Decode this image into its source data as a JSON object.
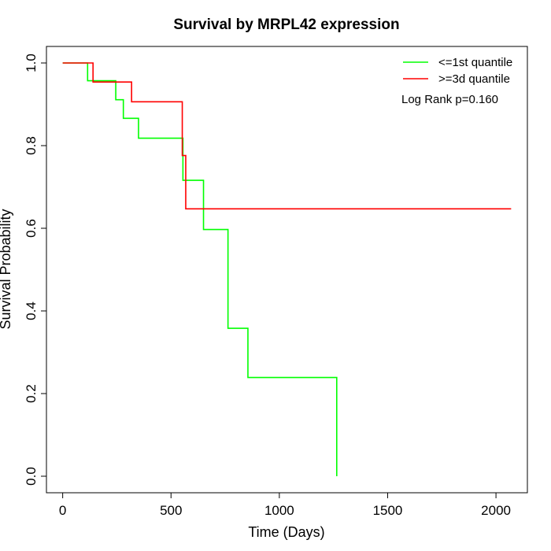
{
  "chart_data": {
    "type": "line",
    "title": "Survival by MRPL42 expression",
    "xlabel": "Time (Days)",
    "ylabel": "Survival Probability",
    "xlim": [
      -75,
      2145
    ],
    "ylim": [
      -0.04,
      1.04
    ],
    "x_ticks": [
      0,
      500,
      1000,
      1500,
      2000
    ],
    "y_ticks": [
      0.0,
      0.2,
      0.4,
      0.6,
      0.8,
      1.0
    ],
    "x_tick_labels": [
      "0",
      "500",
      "1000",
      "1500",
      "2000"
    ],
    "y_tick_labels": [
      "0.0",
      "0.2",
      "0.4",
      "0.6",
      "0.8",
      "1.0"
    ],
    "grid": false,
    "legend_position": "top-right",
    "annotation": "Log Rank p=0.160",
    "series": [
      {
        "name": "<=1st quantile",
        "color": "#00ff00",
        "step_x": [
          0,
          115,
          245,
          280,
          350,
          555,
          650,
          763,
          855,
          1265
        ],
        "step_y": [
          1.0,
          0.957,
          0.911,
          0.866,
          0.818,
          0.716,
          0.597,
          0.358,
          0.239,
          0.0
        ],
        "end_x": 1265
      },
      {
        "name": ">=3d quantile",
        "color": "#ff0000",
        "step_x": [
          0,
          140,
          318,
          552,
          568
        ],
        "step_y": [
          1.0,
          0.954,
          0.906,
          0.776,
          0.647
        ],
        "end_x": 2070
      }
    ]
  }
}
